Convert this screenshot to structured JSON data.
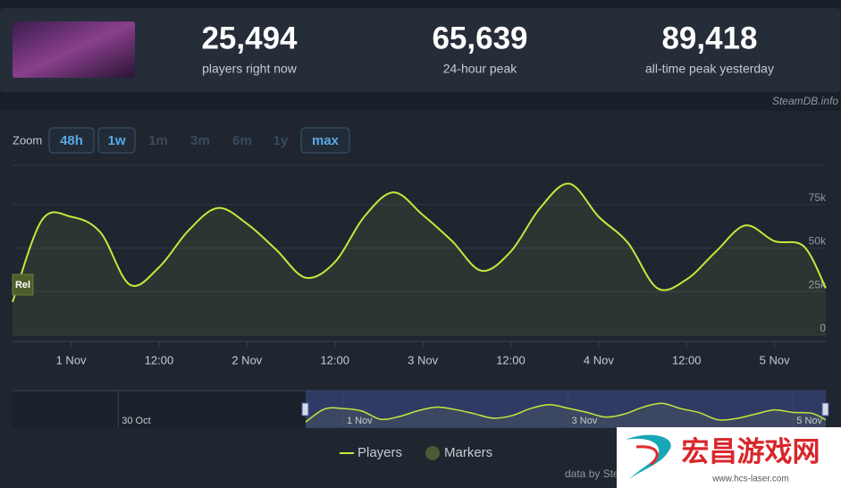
{
  "header": {
    "stats": [
      {
        "value": "25,494",
        "label": "players right now"
      },
      {
        "value": "65,639",
        "label": "24-hour peak"
      },
      {
        "value": "89,418",
        "label": "all-time peak yesterday"
      }
    ],
    "source": "SteamDB.info"
  },
  "zoom": {
    "label": "Zoom",
    "buttons": [
      {
        "text": "48h",
        "active": true
      },
      {
        "text": "1w",
        "active": true
      },
      {
        "text": "1m",
        "active": false
      },
      {
        "text": "3m",
        "active": false
      },
      {
        "text": "6m",
        "active": false
      },
      {
        "text": "1y",
        "active": false
      },
      {
        "text": "max",
        "active": true
      }
    ]
  },
  "chart_data": {
    "type": "line",
    "color": "#c6e83c",
    "grid": true,
    "series": [
      {
        "name": "Players",
        "color": "#c6e83c",
        "values": [
          19000,
          66000,
          68000,
          59000,
          29000,
          39000,
          60000,
          73000,
          64000,
          49000,
          33000,
          42000,
          68000,
          82000,
          69000,
          54000,
          37000,
          48000,
          73000,
          87000,
          68000,
          53000,
          27000,
          32000,
          48000,
          63000,
          54000,
          51000,
          27000
        ]
      }
    ],
    "x": [
      "31 Oct 16:00",
      "31 Oct 20:00",
      "1 Nov 00:00",
      "1 Nov 04:00",
      "1 Nov 08:00",
      "1 Nov 12:00",
      "1 Nov 16:00",
      "1 Nov 20:00",
      "2 Nov 00:00",
      "2 Nov 04:00",
      "2 Nov 08:00",
      "2 Nov 12:00",
      "2 Nov 16:00",
      "2 Nov 20:00",
      "3 Nov 00:00",
      "3 Nov 04:00",
      "3 Nov 08:00",
      "3 Nov 12:00",
      "3 Nov 16:00",
      "3 Nov 20:00",
      "4 Nov 00:00",
      "4 Nov 04:00",
      "4 Nov 08:00",
      "4 Nov 12:00",
      "4 Nov 16:00",
      "4 Nov 20:00",
      "5 Nov 00:00",
      "5 Nov 04:00",
      "5 Nov 07:00"
    ],
    "xlim": [
      "31 Oct 16:00",
      "5 Nov 07:00"
    ],
    "xticks": [
      {
        "value": "1 Nov 00:00",
        "label": "1 Nov"
      },
      {
        "value": "1 Nov 12:00",
        "label": "12:00"
      },
      {
        "value": "2 Nov 00:00",
        "label": "2 Nov"
      },
      {
        "value": "2 Nov 12:00",
        "label": "12:00"
      },
      {
        "value": "3 Nov 00:00",
        "label": "3 Nov"
      },
      {
        "value": "3 Nov 12:00",
        "label": "12:00"
      },
      {
        "value": "4 Nov 00:00",
        "label": "4 Nov"
      },
      {
        "value": "4 Nov 12:00",
        "label": "12:00"
      },
      {
        "value": "5 Nov 00:00",
        "label": "5 Nov"
      }
    ],
    "ylim": [
      0,
      97500
    ],
    "yticks": [
      0,
      {
        "value": 25000,
        "label": "25k"
      },
      {
        "value": 50000,
        "label": "50k"
      },
      {
        "value": 75000,
        "label": "75k"
      }
    ],
    "marker_label": "Rel",
    "legend": [
      "Players",
      "Markers"
    ],
    "navigator_labels": [
      "30 Oct",
      "1 Nov",
      "3 Nov",
      "5 Nov"
    ],
    "credit": "data by SteamDB.info"
  },
  "watermark": {
    "name": "宏昌游戏网",
    "url": "www.hcs-laser.com"
  }
}
